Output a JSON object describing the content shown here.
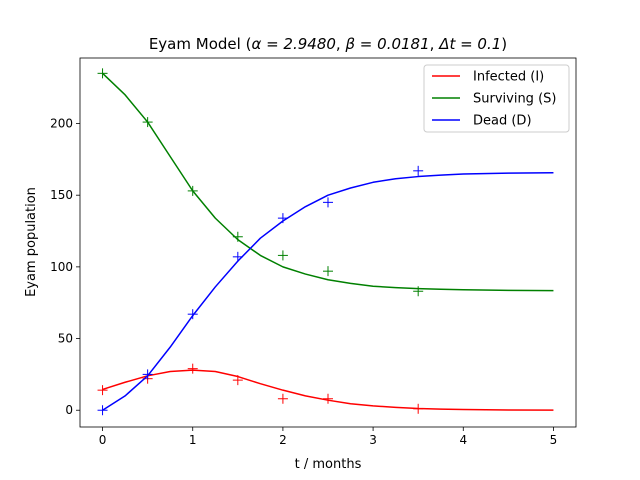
{
  "chart_data": {
    "type": "line",
    "title": "Eyam Model",
    "title_math": {
      "alpha": "α = 2.9480",
      "beta": "β = 0.0181",
      "dt": "Δt = 0.1"
    },
    "xlabel": "t / months",
    "ylabel": "Eyam population",
    "xlim": [
      -0.25,
      5.25
    ],
    "ylim": [
      -11.7,
      245.7
    ],
    "x_ticks": [
      0,
      1,
      2,
      3,
      4,
      5
    ],
    "y_ticks": [
      0,
      50,
      100,
      150,
      200
    ],
    "grid": false,
    "legend_position": "top-right",
    "series": [
      {
        "name": "Infected (I)",
        "color": "#ff0000",
        "line": {
          "x": [
            0,
            0.25,
            0.5,
            0.75,
            1.0,
            1.25,
            1.5,
            1.75,
            2.0,
            2.25,
            2.5,
            2.75,
            3.0,
            3.25,
            3.5,
            3.75,
            4.0,
            4.5,
            5.0
          ],
          "y": [
            14.5,
            19.5,
            24.0,
            27.0,
            28.0,
            27.0,
            23.5,
            18.5,
            14.0,
            10.0,
            7.0,
            4.5,
            3.0,
            2.0,
            1.2,
            0.8,
            0.5,
            0.2,
            0.1
          ]
        },
        "points": {
          "x": [
            0,
            0.5,
            1.0,
            1.5,
            2.0,
            2.5,
            3.5
          ],
          "y": [
            14,
            22,
            29,
            21,
            8,
            8,
            1
          ]
        }
      },
      {
        "name": "Surviving (S)",
        "color": "#008000",
        "line": {
          "x": [
            0,
            0.25,
            0.5,
            0.75,
            1.0,
            1.25,
            1.5,
            1.75,
            2.0,
            2.25,
            2.5,
            2.75,
            3.0,
            3.25,
            3.5,
            3.75,
            4.0,
            4.5,
            5.0
          ],
          "y": [
            235,
            220,
            201,
            177,
            153,
            134,
            119,
            108,
            100,
            95,
            91,
            88.5,
            86.5,
            85.5,
            84.8,
            84.4,
            84.0,
            83.6,
            83.4
          ]
        },
        "points": {
          "x": [
            0,
            0.5,
            1.0,
            1.5,
            2.0,
            2.5,
            3.5
          ],
          "y": [
            235,
            201,
            153,
            121,
            108,
            97,
            83
          ]
        }
      },
      {
        "name": "Dead (D)",
        "color": "#0000ff",
        "line": {
          "x": [
            0,
            0.25,
            0.5,
            0.75,
            1.0,
            1.25,
            1.5,
            1.75,
            2.0,
            2.25,
            2.5,
            2.75,
            3.0,
            3.25,
            3.5,
            3.75,
            4.0,
            4.5,
            5.0
          ],
          "y": [
            0,
            10,
            24,
            44,
            66,
            86,
            104,
            120,
            132,
            142,
            150,
            155,
            159,
            161.5,
            163,
            164,
            164.8,
            165.4,
            165.7
          ]
        },
        "points": {
          "x": [
            0,
            0.5,
            1.0,
            1.5,
            2.0,
            2.5,
            3.5
          ],
          "y": [
            0,
            25,
            67,
            107,
            134,
            145,
            167
          ]
        }
      }
    ]
  }
}
